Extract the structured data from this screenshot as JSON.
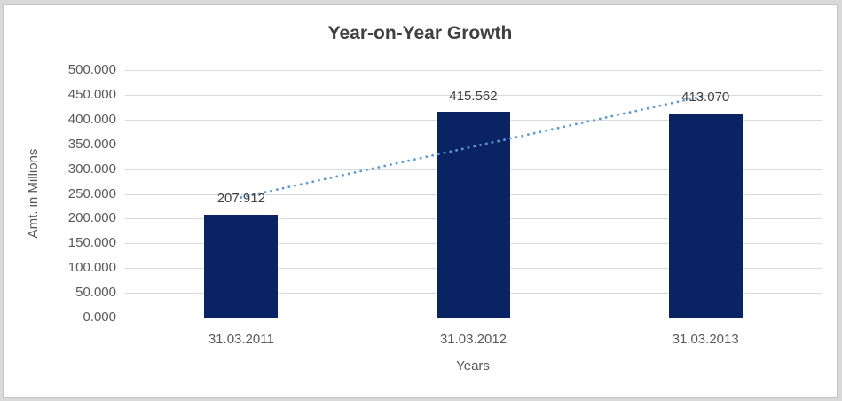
{
  "chart": {
    "outer_background": "#d9d9d9",
    "chart_background": "#ffffff",
    "chart_border_color": "#c4c4c4",
    "title_color": "#404040",
    "axis_text_color": "#595959",
    "data_label_color": "#404040",
    "gridline_color": "#d9d9d9"
  },
  "chart_data": {
    "type": "bar",
    "title": "Year-on-Year Growth",
    "categories": [
      "31.03.2011",
      "31.03.2012",
      "31.03.2013"
    ],
    "values": [
      207.912,
      415.562,
      413.07
    ],
    "data_labels": [
      "207.912",
      "415.562",
      "413.070"
    ],
    "xlabel": "Years",
    "ylabel": "Amt. in Millions",
    "ylim": [
      0,
      500
    ],
    "yticks": [
      0,
      50,
      100,
      150,
      200,
      250,
      300,
      350,
      400,
      450,
      500
    ],
    "ytick_labels": [
      "0.000",
      "50.000",
      "100.000",
      "150.000",
      "200.000",
      "250.000",
      "300.000",
      "350.000",
      "400.000",
      "450.000",
      "500.000"
    ],
    "grid": true,
    "legend": "none",
    "bar_color": "#0a2463",
    "trendline": {
      "type": "linear",
      "style": "dotted",
      "color": "#5b9bd5",
      "start_value": 242.9,
      "end_value": 448.1
    }
  }
}
